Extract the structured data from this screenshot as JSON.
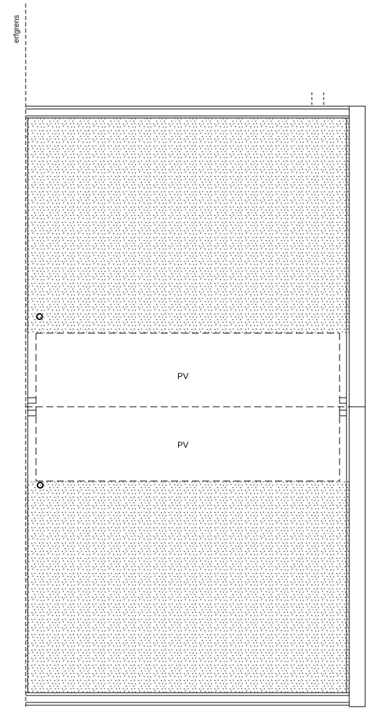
{
  "property_line": {
    "label": "erfgrens"
  },
  "panels": [
    {
      "label": "PV"
    },
    {
      "label": "PV"
    }
  ],
  "colors": {
    "line": "#000000",
    "background": "#ffffff",
    "hatch": "#222222"
  }
}
